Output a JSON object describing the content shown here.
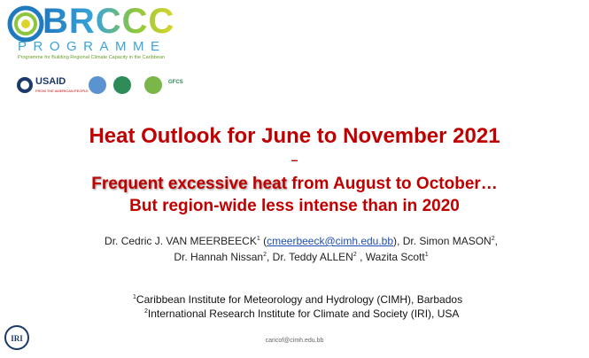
{
  "header": {
    "logo_text": "BRCCC",
    "logo_sub": "PROGRAMME",
    "logo_tagline": "Programme for Building Regional Climate Capacity in the Caribbean",
    "partners": [
      "USAID",
      "FROM THE AMERICAN PEOPLE",
      "GFCS"
    ]
  },
  "title": {
    "main": "Heat Outlook for June to November 2021",
    "dash": "–",
    "highlight": "Frequent excessive heat",
    "line2_rest": " from August to October…",
    "line3": "But region-wide less intense than in 2020"
  },
  "authors": {
    "line1": [
      "Dr. Cedric J. VAN MEERBEECK",
      "1",
      " (",
      "cmeerbeeck@cimh.edu.bb",
      "), Dr. Simon MASON",
      "2",
      ","
    ],
    "line2": [
      "Dr. Hannah Nissan",
      "2",
      ", Dr. Teddy ALLEN",
      "2",
      " , Wazita Scott",
      "1"
    ]
  },
  "affiliations": [
    {
      "sup": "1",
      "text": "Caribbean Institute for Meteorology and Hydrology (CIMH), Barbados"
    },
    {
      "sup": "2",
      "text": "International Research Institute for Climate and Society (IRI), USA"
    }
  ],
  "footer": {
    "email": "caricof@cimh.edu.bb",
    "logo": "IRI"
  }
}
